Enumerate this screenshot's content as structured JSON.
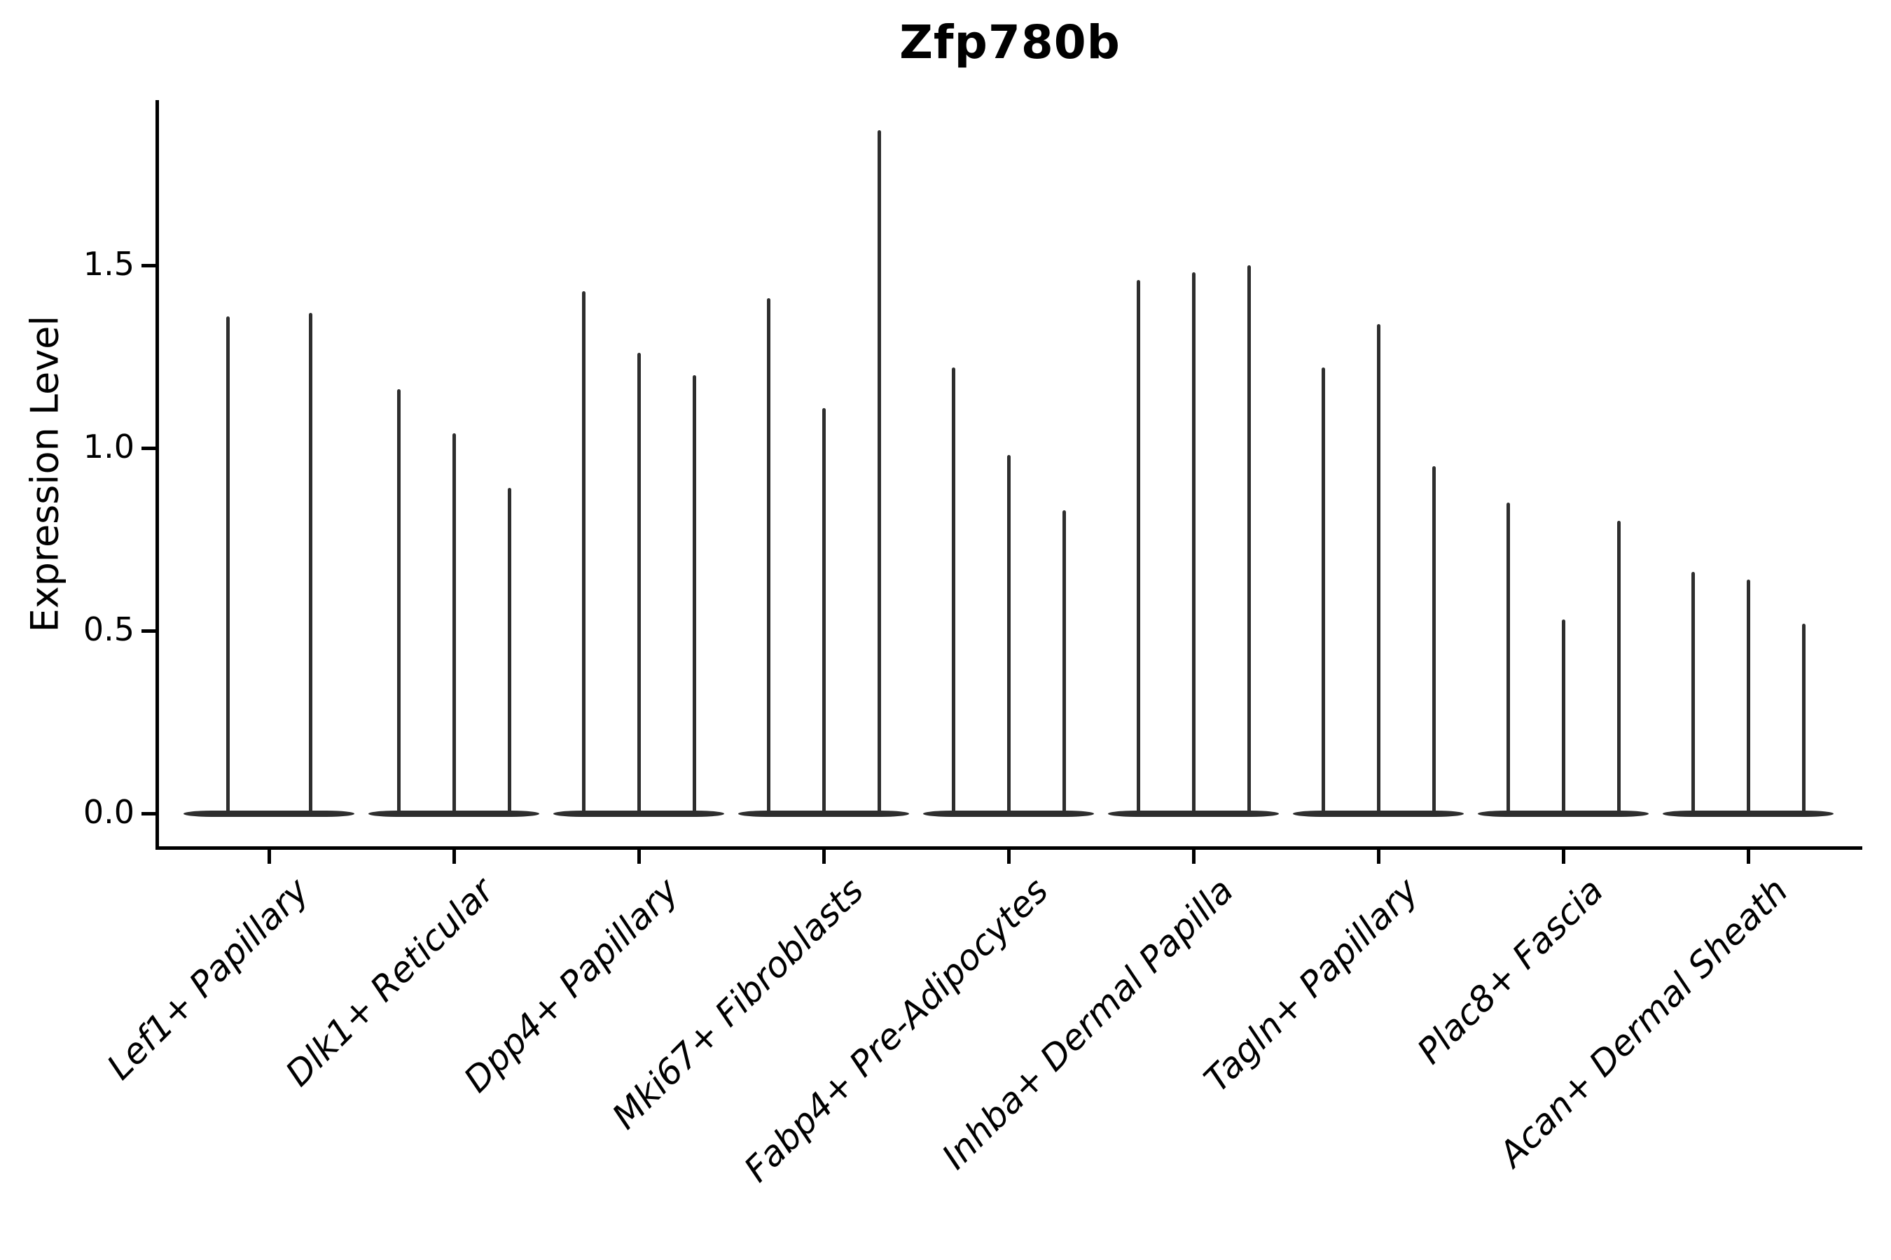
{
  "style": {
    "background": "#ffffff",
    "axis_color": "#000000",
    "violin_color": "#2e2e2e"
  },
  "chart_data": {
    "type": "violin",
    "title": "Zfp780b",
    "xlabel": "",
    "ylabel": "Expression Level",
    "grid": false,
    "legend": "none",
    "ytick_labels": [
      "0.0",
      "0.5",
      "1.0",
      "1.5"
    ],
    "yticks": [
      0.0,
      0.5,
      1.0,
      1.5
    ],
    "ylim": [
      -0.09,
      1.95
    ],
    "categories": [
      "Lef1+ Papillary",
      "Dlk1+ Reticular",
      "Dpp4+ Papillary",
      "Mki67+ Fibroblasts",
      "Fabp4+ Pre-Adipocytes",
      "Inhba+ Dermal Papilla",
      "Tagln+ Papillary",
      "Plac8+ Fascia",
      "Acan+ Dermal Sheath"
    ],
    "series": [
      {
        "category": "Lef1+ Papillary",
        "violin_maxima": [
          1.36,
          1.37
        ]
      },
      {
        "category": "Dlk1+ Reticular",
        "violin_maxima": [
          1.16,
          1.04,
          0.89
        ]
      },
      {
        "category": "Dpp4+ Papillary",
        "violin_maxima": [
          1.43,
          1.26,
          1.2
        ]
      },
      {
        "category": "Mki67+ Fibroblasts",
        "violin_maxima": [
          1.41,
          1.11,
          1.87
        ]
      },
      {
        "category": "Fabp4+ Pre-Adipocytes",
        "violin_maxima": [
          1.22,
          0.98,
          0.83
        ]
      },
      {
        "category": "Inhba+ Dermal Papilla",
        "violin_maxima": [
          1.46,
          1.48,
          1.5
        ]
      },
      {
        "category": "Tagln+ Papillary",
        "violin_maxima": [
          1.22,
          1.34,
          0.95
        ]
      },
      {
        "category": "Plac8+ Fascia",
        "violin_maxima": [
          0.85,
          0.53,
          0.8
        ]
      },
      {
        "category": "Acan+ Dermal Sheath",
        "violin_maxima": [
          0.66,
          0.64,
          0.52
        ]
      }
    ],
    "violin_baseline_value": 0.0
  }
}
